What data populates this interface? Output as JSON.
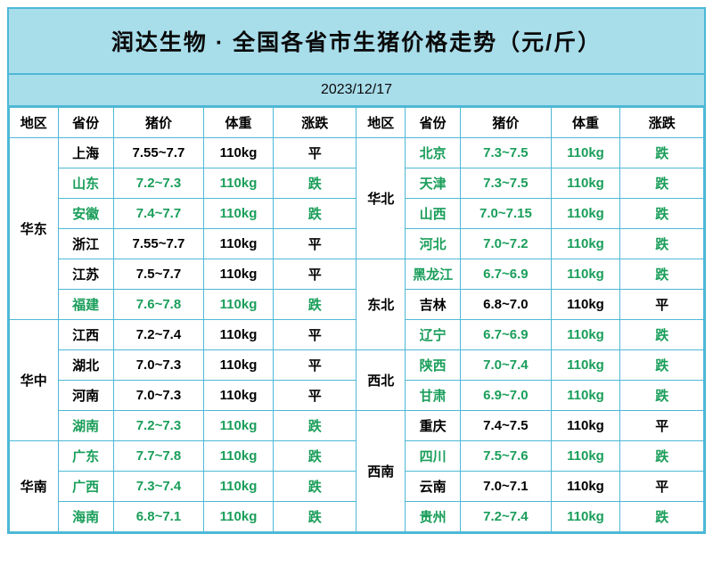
{
  "title": "润达生物 · 全国各省市生猪价格走势（元/斤）",
  "date": "2023/12/17",
  "headers": [
    "地区",
    "省份",
    "猪价",
    "体重",
    "涨跌",
    "地区",
    "省份",
    "猪价",
    "体重",
    "涨跌"
  ],
  "colors": {
    "border": "#4db8d6",
    "header_bg": "#a8ddea",
    "text": "#000000",
    "highlight": "#1a9e5a",
    "bg": "#ffffff"
  },
  "left_regions": [
    {
      "name": "华东",
      "rows": [
        {
          "p": "上海",
          "price": "7.55~7.7",
          "w": "110kg",
          "t": "平",
          "hl": false
        },
        {
          "p": "山东",
          "price": "7.2~7.3",
          "w": "110kg",
          "t": "跌",
          "hl": true
        },
        {
          "p": "安徽",
          "price": "7.4~7.7",
          "w": "110kg",
          "t": "跌",
          "hl": true
        },
        {
          "p": "浙江",
          "price": "7.55~7.7",
          "w": "110kg",
          "t": "平",
          "hl": false
        },
        {
          "p": "江苏",
          "price": "7.5~7.7",
          "w": "110kg",
          "t": "平",
          "hl": false
        },
        {
          "p": "福建",
          "price": "7.6~7.8",
          "w": "110kg",
          "t": "跌",
          "hl": true
        }
      ]
    },
    {
      "name": "华中",
      "rows": [
        {
          "p": "江西",
          "price": "7.2~7.4",
          "w": "110kg",
          "t": "平",
          "hl": false
        },
        {
          "p": "湖北",
          "price": "7.0~7.3",
          "w": "110kg",
          "t": "平",
          "hl": false
        },
        {
          "p": "河南",
          "price": "7.0~7.3",
          "w": "110kg",
          "t": "平",
          "hl": false
        },
        {
          "p": "湖南",
          "price": "7.2~7.3",
          "w": "110kg",
          "t": "跌",
          "hl": true
        }
      ]
    },
    {
      "name": "华南",
      "rows": [
        {
          "p": "广东",
          "price": "7.7~7.8",
          "w": "110kg",
          "t": "跌",
          "hl": true
        },
        {
          "p": "广西",
          "price": "7.3~7.4",
          "w": "110kg",
          "t": "跌",
          "hl": true
        },
        {
          "p": "海南",
          "price": "6.8~7.1",
          "w": "110kg",
          "t": "跌",
          "hl": true
        }
      ]
    }
  ],
  "right_regions": [
    {
      "name": "华北",
      "rows": [
        {
          "p": "北京",
          "price": "7.3~7.5",
          "w": "110kg",
          "t": "跌",
          "hl": true
        },
        {
          "p": "天津",
          "price": "7.3~7.5",
          "w": "110kg",
          "t": "跌",
          "hl": true
        },
        {
          "p": "山西",
          "price": "7.0~7.15",
          "w": "110kg",
          "t": "跌",
          "hl": true
        },
        {
          "p": "河北",
          "price": "7.0~7.2",
          "w": "110kg",
          "t": "跌",
          "hl": true
        }
      ]
    },
    {
      "name": "东北",
      "rows": [
        {
          "p": "黑龙江",
          "price": "6.7~6.9",
          "w": "110kg",
          "t": "跌",
          "hl": true
        },
        {
          "p": "吉林",
          "price": "6.8~7.0",
          "w": "110kg",
          "t": "平",
          "hl": false
        },
        {
          "p": "辽宁",
          "price": "6.7~6.9",
          "w": "110kg",
          "t": "跌",
          "hl": true
        }
      ]
    },
    {
      "name": "西北",
      "rows": [
        {
          "p": "陕西",
          "price": "7.0~7.4",
          "w": "110kg",
          "t": "跌",
          "hl": true
        },
        {
          "p": "甘肃",
          "price": "6.9~7.0",
          "w": "110kg",
          "t": "跌",
          "hl": true
        }
      ]
    },
    {
      "name": "西南",
      "rows": [
        {
          "p": "重庆",
          "price": "7.4~7.5",
          "w": "110kg",
          "t": "平",
          "hl": false
        },
        {
          "p": "四川",
          "price": "7.5~7.6",
          "w": "110kg",
          "t": "跌",
          "hl": true
        },
        {
          "p": "云南",
          "price": "7.0~7.1",
          "w": "110kg",
          "t": "平",
          "hl": false
        },
        {
          "p": "贵州",
          "price": "7.2~7.4",
          "w": "110kg",
          "t": "跌",
          "hl": true
        }
      ]
    }
  ],
  "col_widths": [
    "7%",
    "8%",
    "13%",
    "10%",
    "12%",
    "7%",
    "8%",
    "13%",
    "10%",
    "12%"
  ]
}
